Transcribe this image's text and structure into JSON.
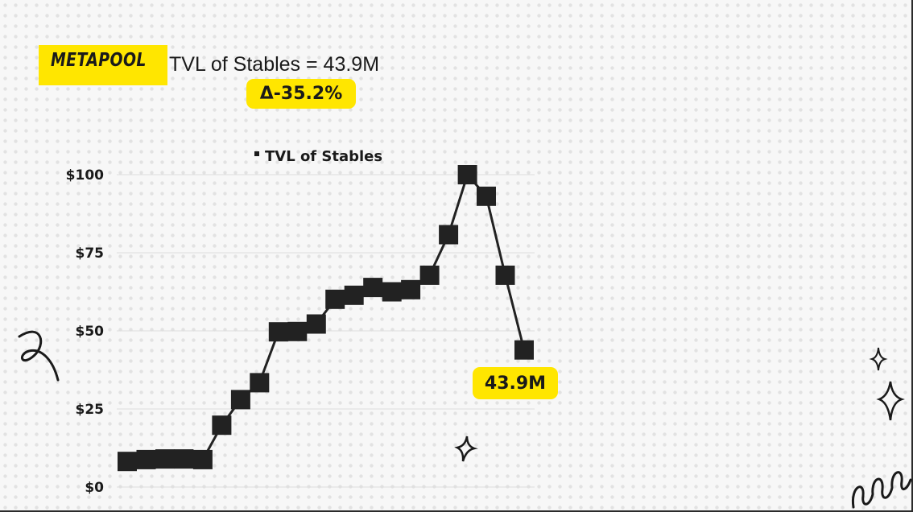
{
  "brand": {
    "name": "METAPOOL"
  },
  "headline": {
    "text": "TVL of Stables = 43.9M"
  },
  "delta": {
    "text": "Δ-35.2%"
  },
  "colors": {
    "accent": "#ffe600",
    "ink": "#1a1a1a",
    "marker": "#222222",
    "gridline": "#dddddd",
    "background": "#f7f7f7"
  },
  "chart_data": {
    "type": "line",
    "title": "",
    "xlabel": "",
    "ylabel": "",
    "ylim": [
      0,
      100
    ],
    "y_ticks": [
      {
        "value": 0,
        "label": "$0"
      },
      {
        "value": 25,
        "label": "$25"
      },
      {
        "value": 50,
        "label": "$50"
      },
      {
        "value": 75,
        "label": "$75"
      },
      {
        "value": 100,
        "label": "$100"
      }
    ],
    "grid": true,
    "legend": {
      "position": "top",
      "entries": [
        "TVL of Stables"
      ]
    },
    "series": [
      {
        "name": "TVL of Stables",
        "marker": "square",
        "values": [
          8.2,
          8.8,
          9.0,
          9.0,
          8.8,
          19.8,
          28.0,
          33.4,
          49.7,
          49.8,
          52.2,
          60.1,
          61.4,
          63.9,
          62.5,
          63.2,
          67.8,
          80.8,
          100.0,
          93.1,
          67.8,
          43.9
        ]
      }
    ],
    "annotations": [
      {
        "series_index": 21,
        "text": "43.9M"
      }
    ]
  },
  "decorations": [
    "swirl-doodle",
    "sparkle-star-small",
    "sparkle-star-large",
    "sparkle-star-center",
    "loops-doodle"
  ]
}
